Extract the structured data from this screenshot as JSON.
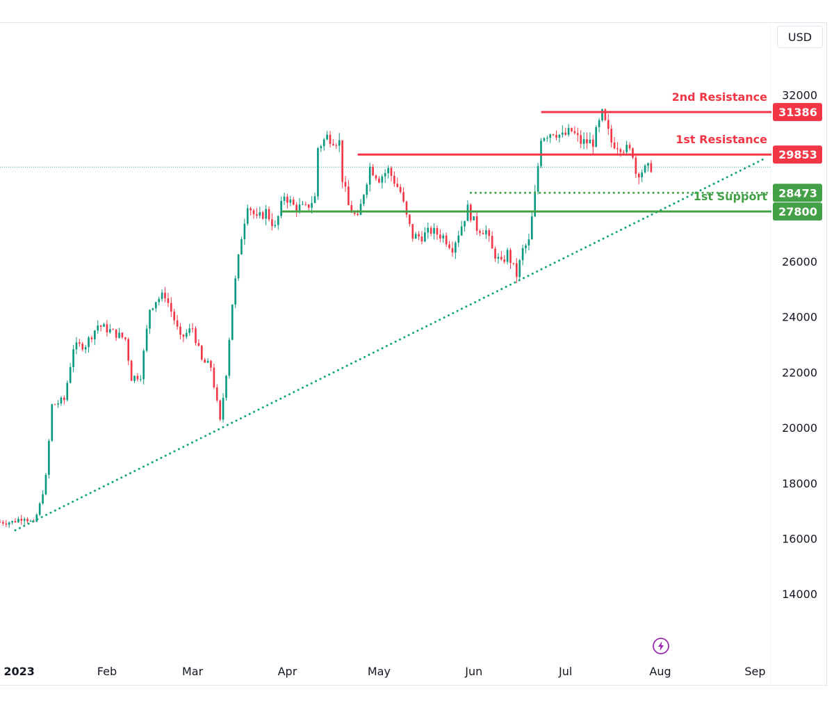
{
  "toolbar": {
    "currency_label": "USD"
  },
  "colors": {
    "up": "#089981",
    "down": "#f23645",
    "resistance": "#f23645",
    "support": "#43a047",
    "trendline": "#10a37f",
    "axis_text": "#131722",
    "flash_icon": "#9c27b0"
  },
  "icons": {
    "flash": "lightning-bolt-icon"
  },
  "chart_data": {
    "type": "candlestick",
    "title": "",
    "currency": "USD",
    "x_axis": {
      "labels": [
        "2023",
        "Feb",
        "Mar",
        "Apr",
        "May",
        "Jun",
        "Jul",
        "Aug",
        "Sep"
      ],
      "label_dates": [
        "2023-01-01",
        "2023-02-01",
        "2023-03-01",
        "2023-04-01",
        "2023-05-01",
        "2023-06-01",
        "2023-07-01",
        "2023-08-01",
        "2023-09-01"
      ],
      "range": [
        "2022-12-28",
        "2023-09-05"
      ]
    },
    "y_axis": {
      "ticks": [
        14000,
        16000,
        18000,
        20000,
        22000,
        24000,
        26000,
        32000
      ],
      "range": [
        12400,
        34600
      ]
    },
    "levels": [
      {
        "label": "2nd Resistance",
        "value": 31386,
        "style": "solid",
        "color": "#f23645",
        "from": "2023-06-23"
      },
      {
        "label": "1st Resistance",
        "value": 29853,
        "style": "solid",
        "color": "#f23645",
        "from": "2023-04-24"
      },
      {
        "label": "",
        "value": 28473,
        "style": "dotted",
        "color": "#43a047",
        "from": "2023-05-31"
      },
      {
        "label": "1st Support",
        "value": 27800,
        "style": "solid",
        "color": "#43a047",
        "from": "2023-03-30"
      }
    ],
    "trendline": {
      "style": "dotted",
      "points": [
        [
          "2023-01-02",
          16300
        ],
        [
          "2023-09-04",
          29700
        ]
      ]
    },
    "last_price": 29400,
    "waypoints": [
      [
        "2022-12-28",
        16600
      ],
      [
        "2023-01-01",
        16600
      ],
      [
        "2023-01-05",
        16800
      ],
      [
        "2023-01-08",
        16500
      ],
      [
        "2023-01-10",
        17200
      ],
      [
        "2023-01-12",
        18200
      ],
      [
        "2023-01-14",
        20800
      ],
      [
        "2023-01-18",
        21000
      ],
      [
        "2023-01-21",
        22900
      ],
      [
        "2023-01-25",
        23000
      ],
      [
        "2023-01-29",
        23700
      ],
      [
        "2023-02-02",
        23500
      ],
      [
        "2023-02-07",
        23200
      ],
      [
        "2023-02-09",
        21800
      ],
      [
        "2023-02-12",
        21900
      ],
      [
        "2023-02-15",
        24300
      ],
      [
        "2023-02-17",
        24600
      ],
      [
        "2023-02-20",
        24800
      ],
      [
        "2023-02-23",
        23900
      ],
      [
        "2023-02-25",
        23200
      ],
      [
        "2023-03-01",
        23600
      ],
      [
        "2023-03-04",
        22400
      ],
      [
        "2023-03-07",
        22200
      ],
      [
        "2023-03-10",
        20200
      ],
      [
        "2023-03-12",
        22000
      ],
      [
        "2023-03-14",
        24500
      ],
      [
        "2023-03-17",
        26900
      ],
      [
        "2023-03-19",
        28100
      ],
      [
        "2023-03-22",
        27500
      ],
      [
        "2023-03-25",
        27800
      ],
      [
        "2023-03-28",
        27200
      ],
      [
        "2023-03-31",
        28400
      ],
      [
        "2023-04-03",
        28000
      ],
      [
        "2023-04-07",
        27900
      ],
      [
        "2023-04-10",
        28300
      ],
      [
        "2023-04-11",
        30100
      ],
      [
        "2023-04-14",
        30500
      ],
      [
        "2023-04-18",
        30300
      ],
      [
        "2023-04-19",
        29000
      ],
      [
        "2023-04-21",
        28000
      ],
      [
        "2023-04-24",
        27500
      ],
      [
        "2023-04-26",
        28500
      ],
      [
        "2023-04-28",
        29400
      ],
      [
        "2023-05-01",
        29000
      ],
      [
        "2023-05-04",
        29300
      ],
      [
        "2023-05-06",
        28900
      ],
      [
        "2023-05-08",
        28500
      ],
      [
        "2023-05-10",
        27600
      ],
      [
        "2023-05-12",
        26900
      ],
      [
        "2023-05-15",
        26900
      ],
      [
        "2023-05-18",
        27100
      ],
      [
        "2023-05-22",
        26900
      ],
      [
        "2023-05-25",
        26500
      ],
      [
        "2023-05-28",
        27300
      ],
      [
        "2023-05-30",
        27900
      ],
      [
        "2023-06-02",
        27200
      ],
      [
        "2023-06-05",
        27100
      ],
      [
        "2023-06-07",
        26400
      ],
      [
        "2023-06-10",
        25900
      ],
      [
        "2023-06-12",
        26300
      ],
      [
        "2023-06-15",
        25500
      ],
      [
        "2023-06-17",
        26400
      ],
      [
        "2023-06-19",
        26700
      ],
      [
        "2023-06-21",
        28400
      ],
      [
        "2023-06-23",
        30500
      ],
      [
        "2023-06-27",
        30700
      ],
      [
        "2023-06-30",
        30500
      ],
      [
        "2023-07-03",
        30700
      ],
      [
        "2023-07-06",
        30300
      ],
      [
        "2023-07-10",
        30300
      ],
      [
        "2023-07-13",
        31300
      ],
      [
        "2023-07-16",
        30300
      ],
      [
        "2023-07-20",
        30100
      ],
      [
        "2023-07-23",
        29900
      ],
      [
        "2023-07-24",
        29200
      ],
      [
        "2023-07-27",
        29300
      ],
      [
        "2023-07-29",
        29400
      ]
    ]
  }
}
